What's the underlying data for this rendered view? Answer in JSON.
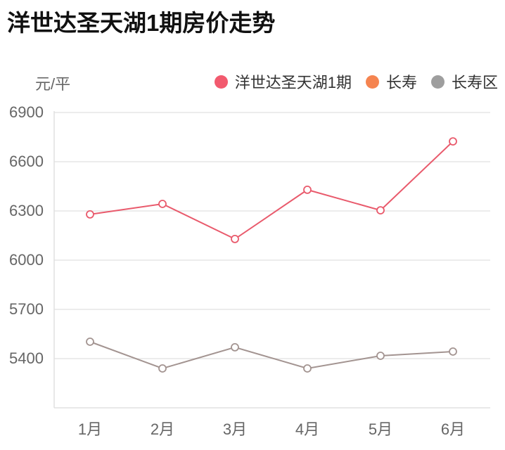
{
  "title": "洋世达圣天湖1期房价走势",
  "unit_label": "元/平",
  "legend": [
    {
      "name": "洋世达圣天湖1期",
      "color": "#f25a6e"
    },
    {
      "name": "长寿",
      "color": "#f58450"
    },
    {
      "name": "长寿区",
      "color": "#9e9e9e"
    }
  ],
  "y_ticks": [
    "6900",
    "6600",
    "6300",
    "6000",
    "5700",
    "5400"
  ],
  "x_ticks": [
    "1月",
    "2月",
    "3月",
    "4月",
    "5月",
    "6月"
  ],
  "chart_data": {
    "type": "line",
    "title": "洋世达圣天湖1期房价走势",
    "xlabel": "",
    "ylabel": "元/平",
    "categories": [
      "1月",
      "2月",
      "3月",
      "4月",
      "5月",
      "6月"
    ],
    "ylim": [
      5100,
      6900
    ],
    "y_ticks": [
      5400,
      5700,
      6000,
      6300,
      6600,
      6900
    ],
    "grid": true,
    "legend_position": "top-right",
    "series": [
      {
        "name": "洋世达圣天湖1期",
        "color": "#e95a6c",
        "values": [
          6279,
          6343,
          6129,
          6429,
          6304,
          6724
        ]
      },
      {
        "name": "长寿",
        "color": "#f58450",
        "values": []
      },
      {
        "name": "长寿区",
        "color": "#a39491",
        "values": [
          5503,
          5340,
          5469,
          5340,
          5417,
          5443
        ]
      }
    ]
  }
}
